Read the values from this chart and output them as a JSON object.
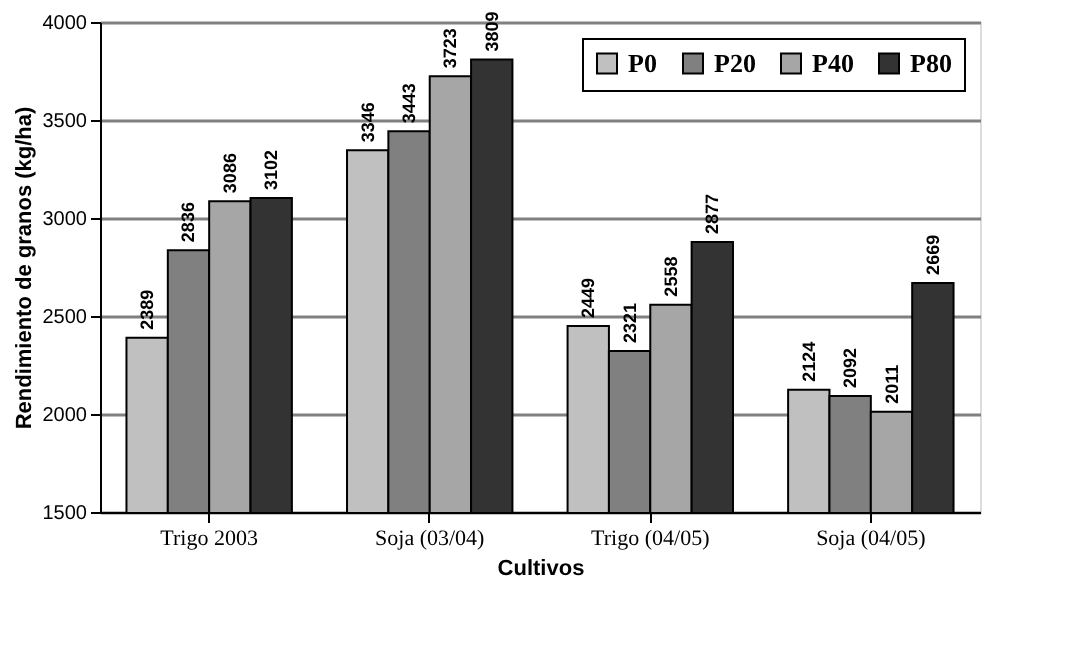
{
  "chart_data": {
    "type": "bar",
    "xlabel": "Cultivos",
    "ylabel": "Rendimiento de granos (kg/ha)",
    "categories": [
      "Trigo 2003",
      "Soja (03/04)",
      "Trigo (04/05)",
      "Soja (04/05)"
    ],
    "series": [
      {
        "name": "P0",
        "color": "#c0c0c0",
        "values": [
          2389,
          3346,
          2449,
          2124
        ]
      },
      {
        "name": "P20",
        "color": "#808080",
        "values": [
          2836,
          3443,
          2321,
          2092
        ]
      },
      {
        "name": "P40",
        "color": "#a6a6a6",
        "values": [
          3086,
          3723,
          2558,
          2011
        ]
      },
      {
        "name": "P80",
        "color": "#333333",
        "values": [
          3102,
          3809,
          2877,
          2669
        ]
      }
    ],
    "ylim": [
      1500,
      4000
    ],
    "yticks": [
      1500,
      2000,
      2500,
      3000,
      3500,
      4000
    ],
    "grid": "y",
    "legend": "top right",
    "data_labels": true
  }
}
